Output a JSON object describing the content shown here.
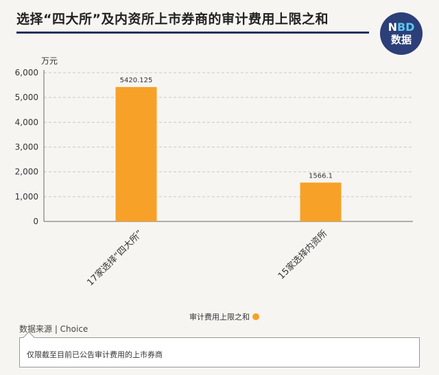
{
  "title": "选择“四大所”及内资所上市券商的审计费用上限之和",
  "logo": {
    "line1_a": "N",
    "line1_b": "BD",
    "line2": "数据"
  },
  "unit": "万元",
  "source": "数据来源 | Choice",
  "note": "仅限截至目前已公告审计费用的上市券商",
  "colors": {
    "bar": "#f7a128",
    "title_bar": "#1f2f5a",
    "logo_bg": "#2c3f78"
  },
  "chart_data": {
    "type": "bar",
    "categories": [
      "17家选择“四大所”",
      "15家选择内资所"
    ],
    "series": [
      {
        "name": "审计费用上限之和",
        "values": [
          5420.125,
          1566.1
        ],
        "labels": [
          "5420.125",
          "1566.1"
        ]
      }
    ],
    "ylim": [
      0,
      6000
    ],
    "yticks": [
      0,
      1000,
      2000,
      3000,
      4000,
      5000,
      6000
    ],
    "ytick_labels": [
      "0",
      "1,000",
      "2,000",
      "3,000",
      "4,000",
      "5,000",
      "6,000"
    ],
    "ylabel": "万元",
    "xlabel": "",
    "grid": true,
    "legend": "bottom"
  }
}
